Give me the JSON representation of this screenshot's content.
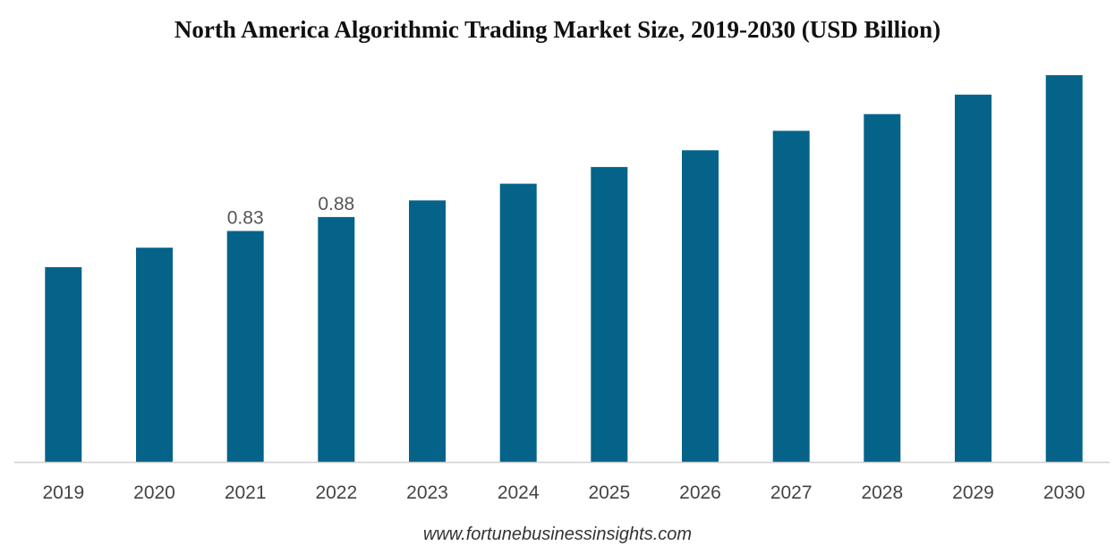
{
  "chart_data": {
    "type": "bar",
    "title": "North America Algorithmic Trading Market Size, 2019-2030 (USD Billion)",
    "xlabel": "",
    "ylabel": "",
    "categories": [
      "2019",
      "2020",
      "2021",
      "2022",
      "2023",
      "2024",
      "2025",
      "2026",
      "2027",
      "2028",
      "2029",
      "2030"
    ],
    "series": [
      {
        "name": "North America",
        "color": "#05638A",
        "values": [
          0.7,
          0.77,
          0.83,
          0.88,
          0.94,
          1.0,
          1.06,
          1.12,
          1.19,
          1.25,
          1.32,
          1.39
        ]
      }
    ],
    "data_labels": [
      {
        "category": "2021",
        "text": "0.83"
      },
      {
        "category": "2022",
        "text": "0.88"
      }
    ],
    "ylim": [
      0,
      1.4
    ],
    "grid": false,
    "legend": "none",
    "axis_color": "#D0D0D0"
  },
  "source": "www.fortunebusinessinsights.com"
}
